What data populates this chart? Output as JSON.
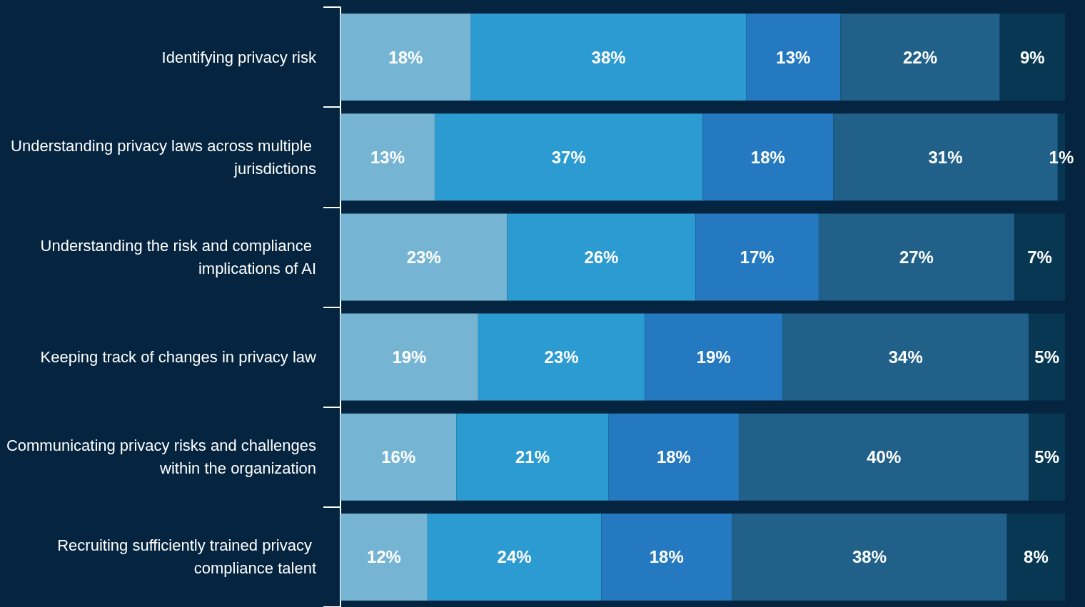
{
  "chart_data": {
    "type": "bar",
    "orientation": "horizontal",
    "stacked": true,
    "grid": false,
    "tick_labels": "y",
    "categories": [
      "Identifying privacy risk",
      "Understanding privacy laws across multiple jurisdictions",
      "Understanding the risk and compliance implications of AI",
      "Keeping track of changes in privacy law",
      "Communicating privacy risks and challenges within the organization",
      "Recruiting sufficiently trained privacy compliance talent"
    ],
    "series": [
      {
        "color": "#75b5d3",
        "values": [
          18,
          13,
          23,
          19,
          16,
          12
        ],
        "value_labels": [
          "18%",
          "13%",
          "23%",
          "19%",
          "16%",
          "12%"
        ]
      },
      {
        "color": "#2b9bd1",
        "values": [
          38,
          37,
          26,
          23,
          21,
          24
        ],
        "value_labels": [
          "38%",
          "37%",
          "26%",
          "23%",
          "21%",
          "24%"
        ]
      },
      {
        "color": "#2479c0",
        "values": [
          13,
          18,
          17,
          19,
          18,
          18
        ],
        "value_labels": [
          "13%",
          "18%",
          "17%",
          "19%",
          "18%",
          "18%"
        ]
      },
      {
        "color": "#206089",
        "values": [
          22,
          31,
          27,
          34,
          40,
          38
        ],
        "value_labels": [
          "22%",
          "31%",
          "27%",
          "34%",
          "40%",
          "38%"
        ]
      },
      {
        "color": "#073752",
        "values": [
          9,
          1,
          7,
          5,
          5,
          8
        ],
        "value_labels": [
          "9%",
          "1%",
          "7%",
          "5%",
          "5%",
          "8%"
        ]
      }
    ]
  }
}
